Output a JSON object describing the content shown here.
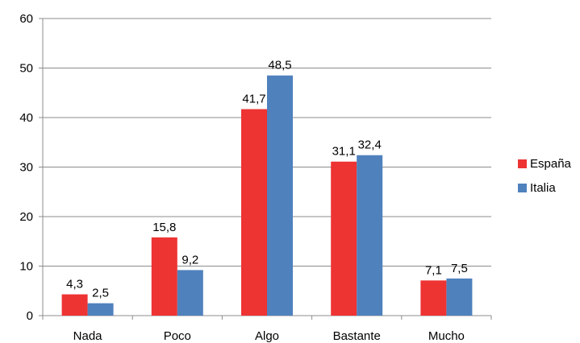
{
  "chart_data": {
    "type": "bar",
    "categories": [
      "Nada",
      "Poco",
      "Algo",
      "Bastante",
      "Mucho"
    ],
    "series": [
      {
        "name": "España",
        "color": "#EE3333",
        "values": [
          4.3,
          15.8,
          41.7,
          31.1,
          7.1
        ]
      },
      {
        "name": "Italia",
        "color": "#4F81BD",
        "values": [
          2.5,
          9.2,
          48.5,
          32.4,
          7.5
        ]
      }
    ],
    "data_labels": [
      [
        "4,3",
        "15,8",
        "41,7",
        "31,1",
        "7,1"
      ],
      [
        "2,5",
        "9,2",
        "48,5",
        "32,4",
        "7,5"
      ]
    ],
    "y_ticks": [
      "0",
      "10",
      "20",
      "30",
      "40",
      "50",
      "60"
    ],
    "ylim": [
      0,
      60
    ],
    "grid": true,
    "legend_position": "right"
  }
}
